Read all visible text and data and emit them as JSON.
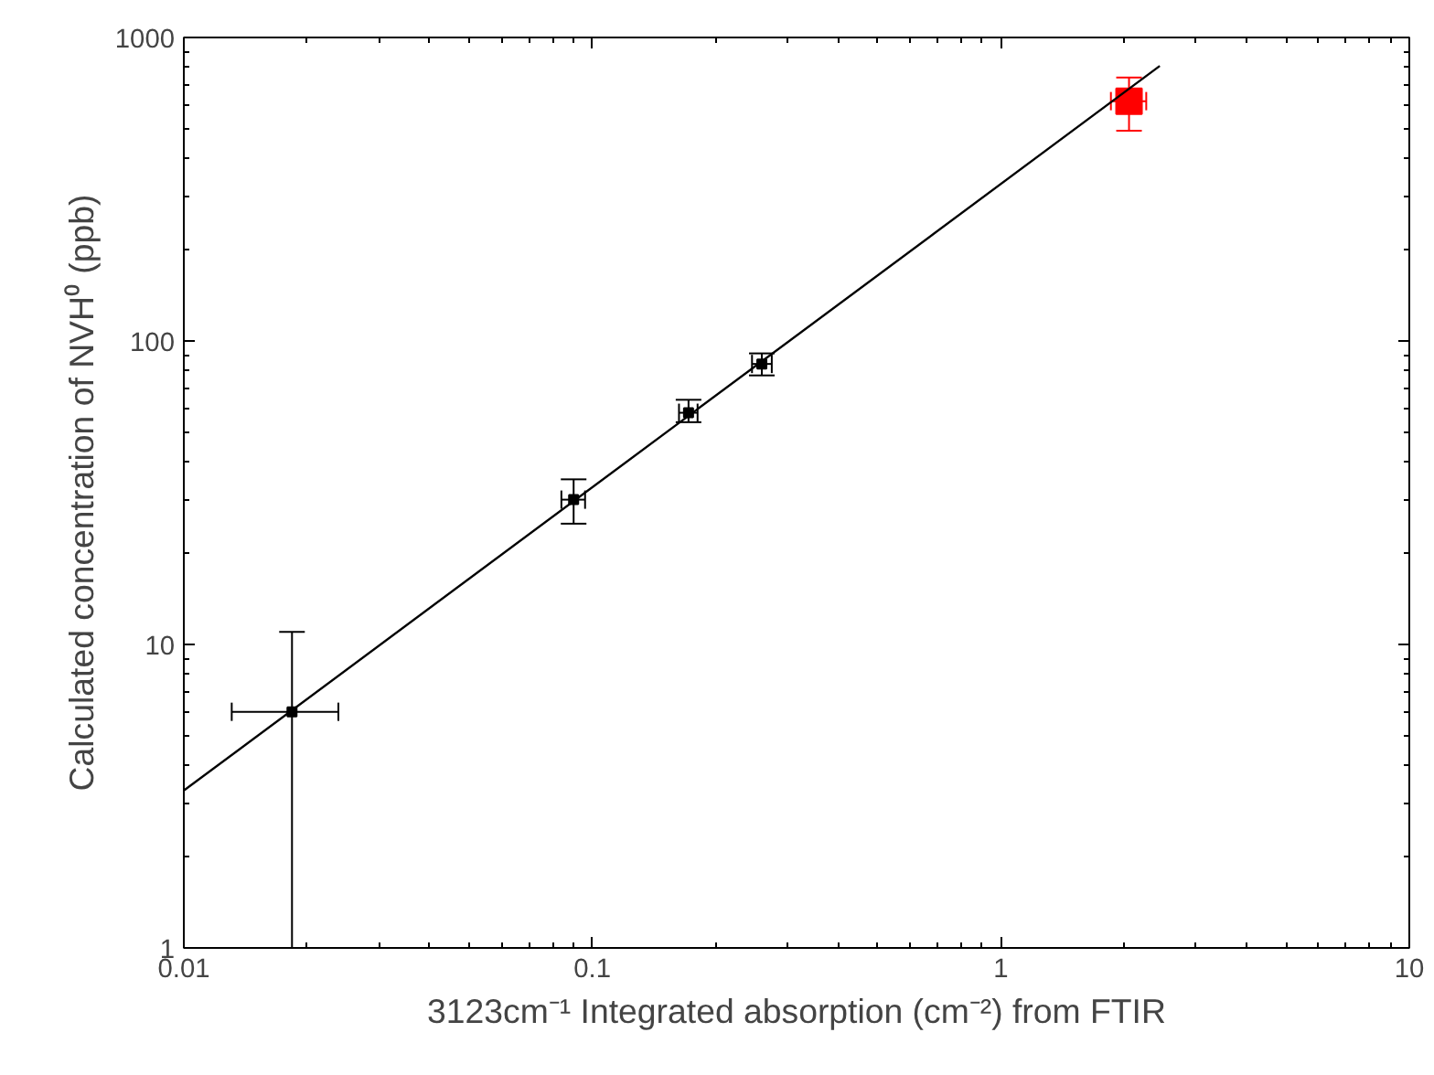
{
  "chart_data": {
    "type": "scatter",
    "xlabel": "3123cm⁻¹ Integrated absorption (cm⁻²) from FTIR",
    "ylabel": "Calculated concentration of NVH⁰ (ppb)",
    "log": "xy",
    "grid": false,
    "marker": "square",
    "xlim": [
      0.01,
      10
    ],
    "ylim": [
      1,
      1000
    ],
    "xticks": [
      0.01,
      0.1,
      1,
      10
    ],
    "yticks": [
      1,
      10,
      100,
      1000
    ],
    "series": [
      {
        "color": "#000000",
        "x": [
          0.0184,
          0.09,
          0.172,
          0.26
        ],
        "values": [
          6,
          30,
          58,
          84
        ],
        "errors": [
          [
            1,
            11
          ],
          [
            25,
            35
          ],
          [
            54,
            64
          ],
          [
            77,
            91
          ]
        ],
        "xerrors": [
          [
            0.0131,
            0.0239
          ],
          [
            0.084,
            0.096
          ],
          [
            0.163,
            0.181
          ],
          [
            0.246,
            0.275
          ]
        ]
      },
      {
        "color": "#ff0000",
        "x": [
          2.06
        ],
        "values": [
          617
        ],
        "errors": [
          [
            493,
            738
          ]
        ],
        "xerrors": [
          [
            1.86,
            2.27
          ]
        ]
      },
      {
        "type": "line",
        "color": "#000000",
        "marker": "none",
        "x": [
          0.01,
          2.45
        ],
        "values": [
          3.3,
          806
        ]
      }
    ]
  }
}
